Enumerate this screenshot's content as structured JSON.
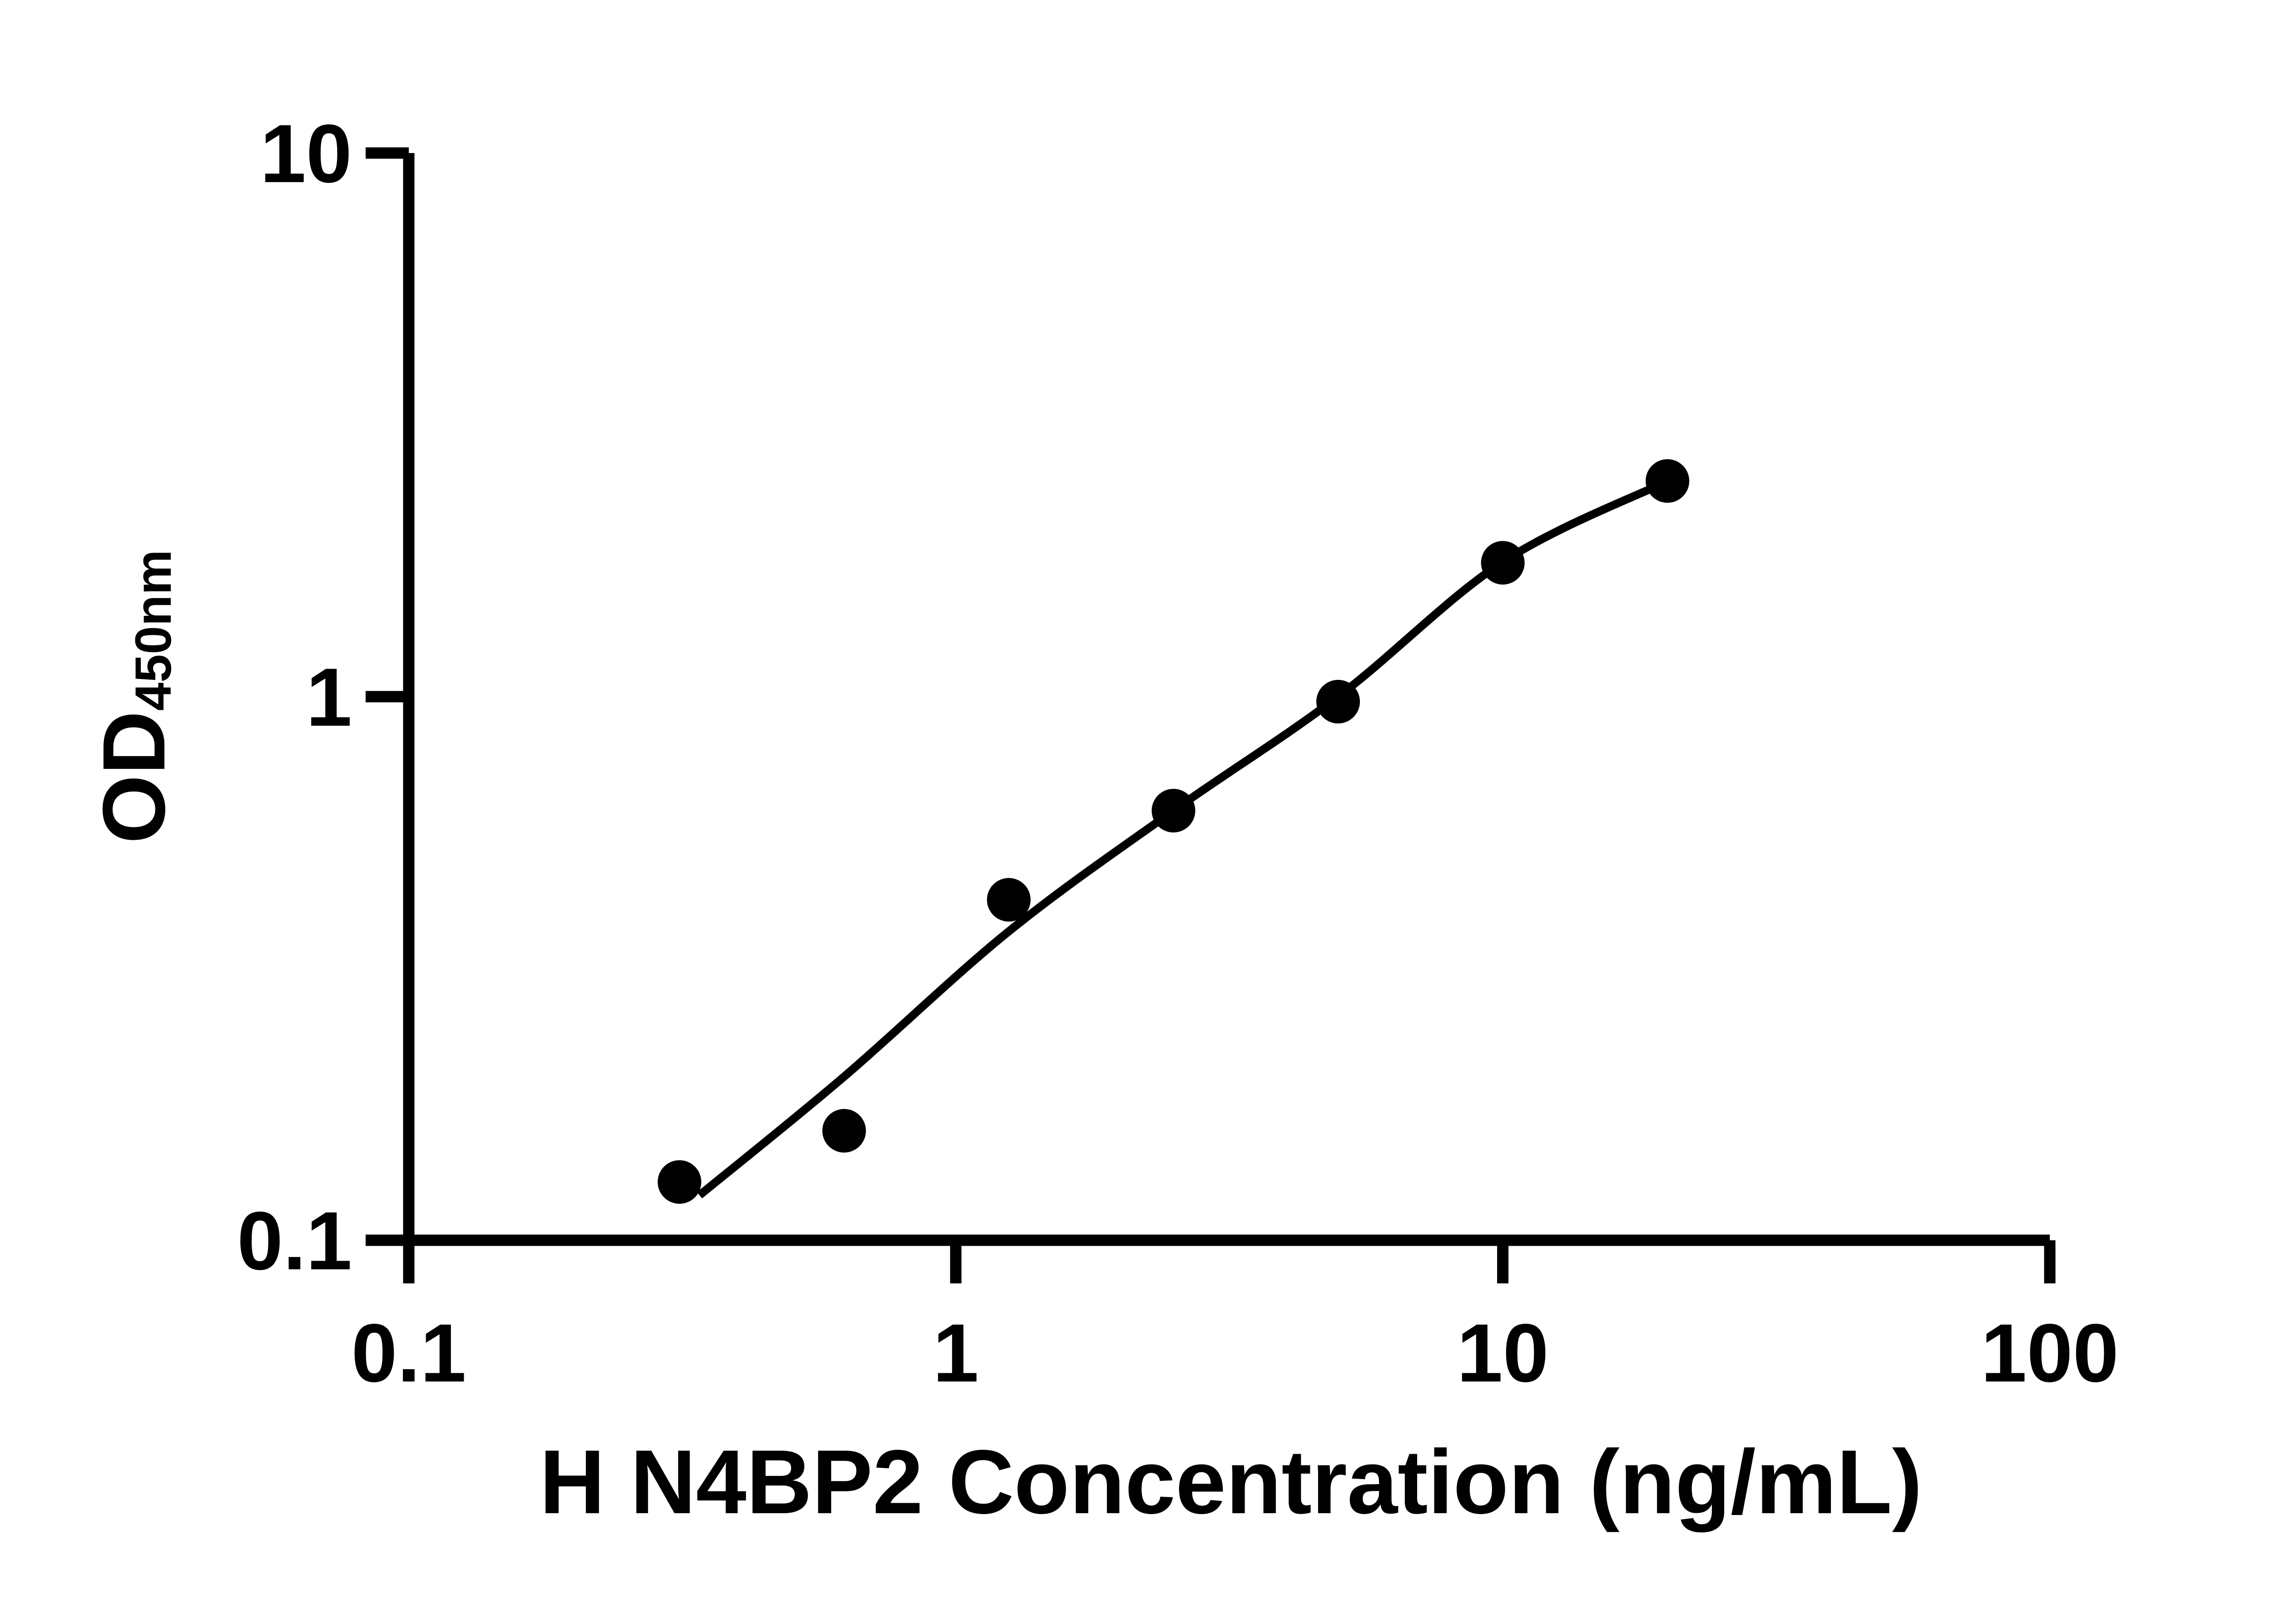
{
  "chart_data": {
    "type": "scatter",
    "title": "",
    "xlabel": "H N4BP2 Concentration (ng/mL)",
    "ylabel_main": "OD",
    "ylabel_sub": "450nm",
    "x_scale": "log",
    "y_scale": "log",
    "xlim": [
      0.1,
      100
    ],
    "ylim": [
      0.1,
      10
    ],
    "grid": false,
    "legend_position": "none",
    "axis_color": "#000000",
    "marker_color": "#000000",
    "curve_color": "#000000",
    "background_color": "#ffffff",
    "x_ticks": [
      {
        "value": 0.1,
        "label": "0.1"
      },
      {
        "value": 1,
        "label": "1"
      },
      {
        "value": 10,
        "label": "10"
      },
      {
        "value": 100,
        "label": "100"
      }
    ],
    "y_ticks": [
      {
        "value": 10,
        "label": "10"
      },
      {
        "value": 1,
        "label": "1"
      },
      {
        "value": 0.1,
        "label": "0.1"
      }
    ],
    "series": [
      {
        "name": "standard-points",
        "marker": "filled-circle",
        "points": [
          {
            "x": 0.3125,
            "y": 0.128
          },
          {
            "x": 0.625,
            "y": 0.159
          },
          {
            "x": 1.25,
            "y": 0.423
          },
          {
            "x": 2.5,
            "y": 0.617
          },
          {
            "x": 5,
            "y": 0.979
          },
          {
            "x": 10,
            "y": 1.763
          },
          {
            "x": 20,
            "y": 2.493
          }
        ]
      }
    ],
    "fit_curve": {
      "name": "standard-curve-fit",
      "points": [
        {
          "x": 0.34,
          "y": 0.121
        },
        {
          "x": 0.625,
          "y": 0.2
        },
        {
          "x": 1.25,
          "y": 0.37
        },
        {
          "x": 2.5,
          "y": 0.617
        },
        {
          "x": 5,
          "y": 1.0
        },
        {
          "x": 10,
          "y": 1.77
        },
        {
          "x": 20,
          "y": 2.49
        }
      ]
    }
  }
}
